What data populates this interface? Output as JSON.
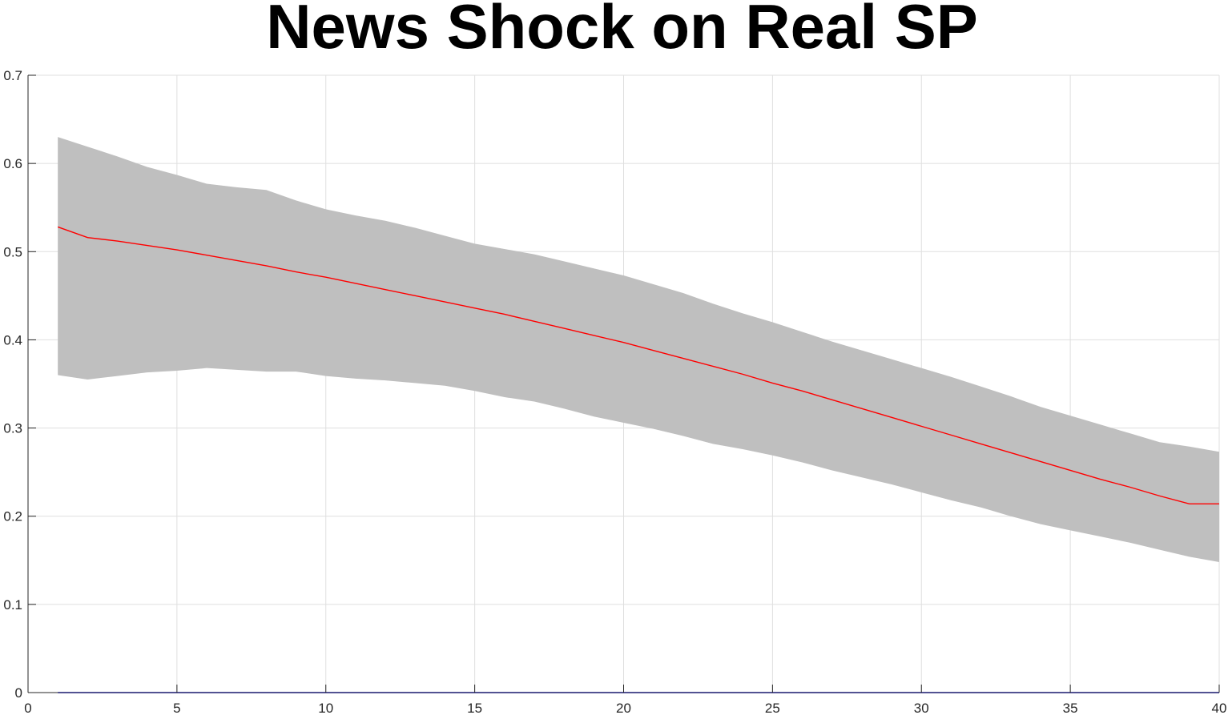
{
  "chart_data": {
    "type": "area",
    "title": "News Shock on Real SP",
    "xlabel": "",
    "ylabel": "",
    "xlim": [
      0,
      40
    ],
    "ylim": [
      0,
      0.7
    ],
    "x_ticks": [
      "0",
      "5",
      "10",
      "15",
      "20",
      "25",
      "30",
      "35",
      "40"
    ],
    "y_ticks": [
      "0",
      "0.1",
      "0.2",
      "0.3",
      "0.4",
      "0.5",
      "0.6",
      "0.7"
    ],
    "grid": true,
    "legend": "none",
    "x": [
      1,
      2,
      3,
      4,
      5,
      6,
      7,
      8,
      9,
      10,
      11,
      12,
      13,
      14,
      15,
      16,
      17,
      18,
      19,
      20,
      21,
      22,
      23,
      24,
      25,
      26,
      27,
      28,
      29,
      30,
      31,
      32,
      33,
      34,
      35,
      36,
      37,
      38,
      39,
      40
    ],
    "series": [
      {
        "kind": "band",
        "color": "#bfbfbf",
        "upper": [
          0.63,
          0.619,
          0.608,
          0.596,
          0.587,
          0.577,
          0.573,
          0.57,
          0.558,
          0.548,
          0.541,
          0.535,
          0.527,
          0.518,
          0.509,
          0.503,
          0.497,
          0.489,
          0.481,
          0.473,
          0.463,
          0.453,
          0.441,
          0.43,
          0.42,
          0.409,
          0.398,
          0.388,
          0.378,
          0.368,
          0.358,
          0.347,
          0.336,
          0.324,
          0.314,
          0.304,
          0.294,
          0.284,
          0.279,
          0.273
        ],
        "lower": [
          0.36,
          0.355,
          0.359,
          0.363,
          0.365,
          0.368,
          0.366,
          0.364,
          0.364,
          0.359,
          0.356,
          0.354,
          0.351,
          0.348,
          0.342,
          0.335,
          0.33,
          0.322,
          0.313,
          0.306,
          0.299,
          0.291,
          0.282,
          0.276,
          0.269,
          0.261,
          0.252,
          0.244,
          0.236,
          0.227,
          0.218,
          0.21,
          0.2,
          0.191,
          0.184,
          0.177,
          0.17,
          0.162,
          0.154,
          0.148
        ]
      },
      {
        "kind": "line",
        "color": "#ff0000",
        "values": [
          0.528,
          0.516,
          0.512,
          0.507,
          0.502,
          0.496,
          0.49,
          0.484,
          0.477,
          0.471,
          0.464,
          0.457,
          0.45,
          0.443,
          0.436,
          0.429,
          0.421,
          0.413,
          0.405,
          0.397,
          0.388,
          0.379,
          0.37,
          0.361,
          0.351,
          0.342,
          0.332,
          0.322,
          0.312,
          0.302,
          0.292,
          0.282,
          0.272,
          0.262,
          0.252,
          0.242,
          0.233,
          0.223,
          0.214,
          0.214
        ]
      },
      {
        "kind": "line",
        "color": "#0000ff",
        "values": [
          0,
          0,
          0,
          0,
          0,
          0,
          0,
          0,
          0,
          0,
          0,
          0,
          0,
          0,
          0,
          0,
          0,
          0,
          0,
          0,
          0,
          0,
          0,
          0,
          0,
          0,
          0,
          0,
          0,
          0,
          0,
          0,
          0,
          0,
          0,
          0,
          0,
          0,
          0,
          0
        ]
      }
    ]
  }
}
